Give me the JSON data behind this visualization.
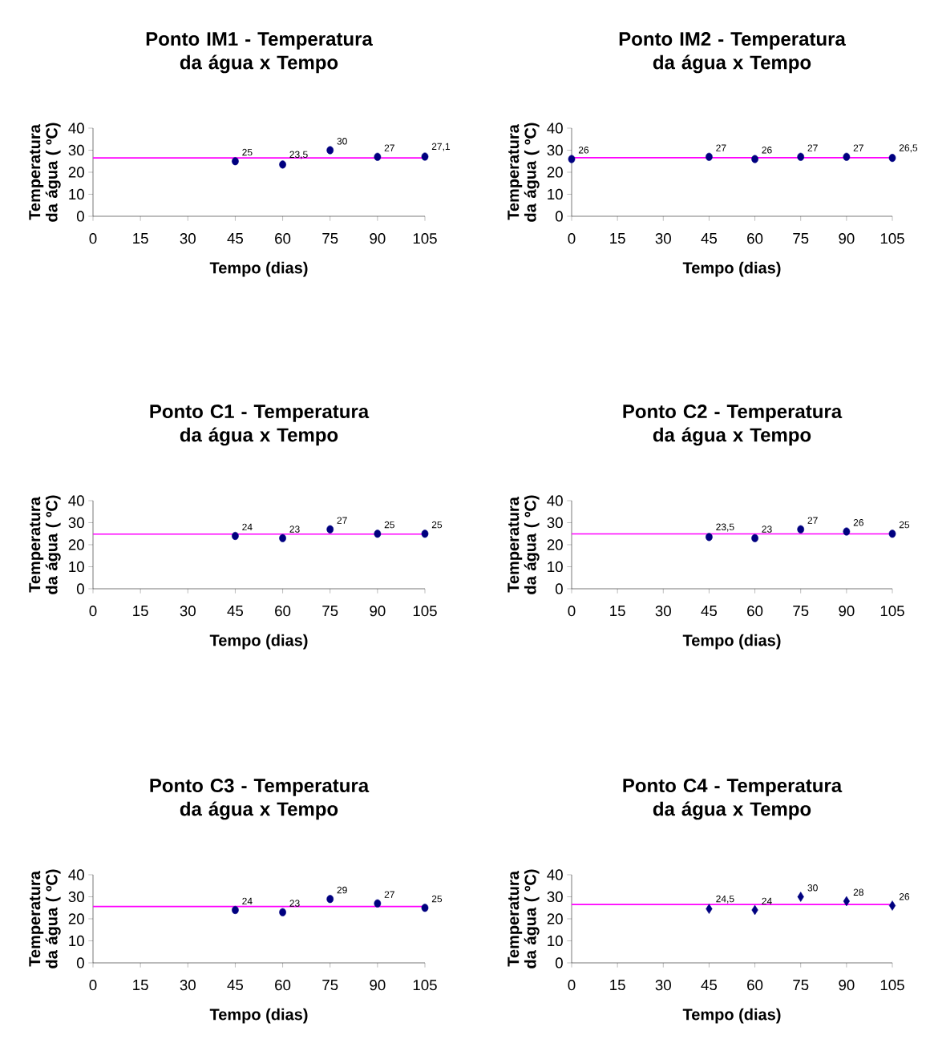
{
  "chart_data": [
    {
      "type": "scatter",
      "title": "Ponto IM1 - Temperatura da água x Tempo",
      "xlabel": "Tempo (dias)",
      "ylabel": "Temperatura da água ( ºC)",
      "x": [
        45,
        60,
        75,
        90,
        105
      ],
      "values": [
        25,
        23.5,
        30,
        27,
        27.1
      ],
      "value_labels": [
        "25",
        "23,5",
        "30",
        "27",
        "27,1"
      ],
      "color": "#000080",
      "marker": "circle",
      "xlim": [
        0,
        105
      ],
      "ylim": [
        0,
        40
      ],
      "xticks": [
        0,
        15,
        30,
        45,
        60,
        75,
        90,
        105
      ],
      "yticks": [
        0,
        10,
        20,
        30,
        40
      ],
      "ref_lines": [
        {
          "axis": "y",
          "value": 26.5,
          "color": "#ff00ff"
        }
      ]
    },
    {
      "type": "scatter",
      "title": "Ponto IM2 - Temperatura da água x Tempo",
      "xlabel": "Tempo (dias)",
      "ylabel": "Temperatura da água ( ºC)",
      "x": [
        0,
        45,
        60,
        75,
        90,
        105
      ],
      "values": [
        26,
        27,
        26,
        27,
        27,
        26.5
      ],
      "value_labels": [
        "26",
        "27",
        "26",
        "27",
        "27",
        "26,5"
      ],
      "color": "#000080",
      "marker": "circle",
      "xlim": [
        0,
        105
      ],
      "ylim": [
        0,
        40
      ],
      "xticks": [
        0,
        15,
        30,
        45,
        60,
        75,
        90,
        105
      ],
      "yticks": [
        0,
        10,
        20,
        30,
        40
      ],
      "ref_lines": [
        {
          "axis": "y",
          "value": 26.6,
          "color": "#ff00ff"
        }
      ]
    },
    {
      "type": "scatter",
      "title": "Ponto C1 - Temperatura da água x Tempo",
      "xlabel": "Tempo (dias)",
      "ylabel": "Temperatura da água ( ºC)",
      "x": [
        45,
        60,
        75,
        90,
        105
      ],
      "values": [
        24,
        23,
        27,
        25,
        25
      ],
      "value_labels": [
        "24",
        "23",
        "27",
        "25",
        "25"
      ],
      "color": "#000080",
      "marker": "circle",
      "xlim": [
        0,
        105
      ],
      "ylim": [
        0,
        40
      ],
      "xticks": [
        0,
        15,
        30,
        45,
        60,
        75,
        90,
        105
      ],
      "yticks": [
        0,
        10,
        20,
        30,
        40
      ],
      "ref_lines": [
        {
          "axis": "y",
          "value": 24.8,
          "color": "#ff00ff"
        }
      ]
    },
    {
      "type": "scatter",
      "title": "Ponto C2 - Temperatura da água x Tempo",
      "xlabel": "Tempo (dias)",
      "ylabel": "Temperatura da água ( ºC)",
      "x": [
        45,
        60,
        75,
        90,
        105
      ],
      "values": [
        23.5,
        23,
        27,
        26,
        25
      ],
      "value_labels": [
        "23,5",
        "23",
        "27",
        "26",
        "25"
      ],
      "color": "#000080",
      "marker": "circle",
      "xlim": [
        0,
        105
      ],
      "ylim": [
        0,
        40
      ],
      "xticks": [
        0,
        15,
        30,
        45,
        60,
        75,
        90,
        105
      ],
      "yticks": [
        0,
        10,
        20,
        30,
        40
      ],
      "ref_lines": [
        {
          "axis": "y",
          "value": 24.9,
          "color": "#ff00ff"
        }
      ]
    },
    {
      "type": "scatter",
      "title": "Ponto C3 - Temperatura da água x Tempo",
      "xlabel": "Tempo (dias)",
      "ylabel": "Temperatura da água ( ºC)",
      "x": [
        45,
        60,
        75,
        90,
        105
      ],
      "values": [
        24,
        23,
        29,
        27,
        25
      ],
      "value_labels": [
        "24",
        "23",
        "29",
        "27",
        "25"
      ],
      "color": "#000080",
      "marker": "circle",
      "xlim": [
        0,
        105
      ],
      "ylim": [
        0,
        40
      ],
      "xticks": [
        0,
        15,
        30,
        45,
        60,
        75,
        90,
        105
      ],
      "yticks": [
        0,
        10,
        20,
        30,
        40
      ],
      "ref_lines": [
        {
          "axis": "y",
          "value": 25.6,
          "color": "#ff00ff"
        }
      ]
    },
    {
      "type": "scatter",
      "title": "Ponto C4 - Temperatura da água x Tempo",
      "xlabel": "Tempo (dias)",
      "ylabel": "Temperatura da água ( ºC)",
      "x": [
        45,
        60,
        75,
        90,
        105
      ],
      "values": [
        24.5,
        24,
        30,
        28,
        26
      ],
      "value_labels": [
        "24,5",
        "24",
        "30",
        "28",
        "26"
      ],
      "color": "#000080",
      "marker": "diamond",
      "xlim": [
        0,
        105
      ],
      "ylim": [
        0,
        40
      ],
      "xticks": [
        0,
        15,
        30,
        45,
        60,
        75,
        90,
        105
      ],
      "yticks": [
        0,
        10,
        20,
        30,
        40
      ],
      "ref_lines": [
        {
          "axis": "y",
          "value": 26.5,
          "color": "#ff00ff"
        }
      ]
    }
  ]
}
